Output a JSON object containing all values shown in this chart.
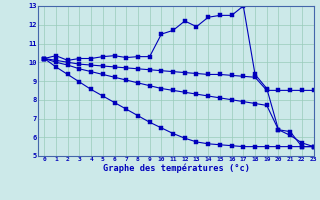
{
  "title": "Graphe des températures (°c)",
  "bg_color": "#cce9e9",
  "line_color": "#0000bb",
  "grid_color": "#99ccbb",
  "xlim": [
    -0.5,
    23
  ],
  "ylim": [
    5,
    13
  ],
  "xticks": [
    0,
    1,
    2,
    3,
    4,
    5,
    6,
    7,
    8,
    9,
    10,
    11,
    12,
    13,
    14,
    15,
    16,
    17,
    18,
    19,
    20,
    21,
    22,
    23
  ],
  "yticks": [
    5,
    6,
    7,
    8,
    9,
    10,
    11,
    12,
    13
  ],
  "s1_x": [
    0,
    1,
    2,
    3,
    4,
    5,
    6,
    7,
    8,
    9,
    10,
    11,
    12,
    13,
    14,
    15,
    16,
    17,
    18,
    19,
    20,
    21,
    22,
    23
  ],
  "s1_y": [
    10.2,
    10.35,
    10.1,
    10.2,
    10.2,
    10.3,
    10.35,
    10.25,
    10.3,
    10.3,
    11.5,
    11.7,
    12.2,
    11.9,
    12.4,
    12.5,
    12.5,
    13.0,
    9.35,
    8.6,
    6.4,
    6.3,
    5.5,
    5.5
  ],
  "s2_x": [
    0,
    1,
    2,
    3,
    4,
    5,
    6,
    7,
    8,
    9,
    10,
    11,
    12,
    13,
    14,
    15,
    16,
    17,
    18,
    19,
    20,
    21,
    22,
    23
  ],
  "s2_y": [
    10.2,
    10.1,
    10.0,
    9.9,
    9.85,
    9.8,
    9.75,
    9.7,
    9.65,
    9.6,
    9.55,
    9.5,
    9.45,
    9.4,
    9.35,
    9.35,
    9.3,
    9.25,
    9.2,
    8.5,
    8.5,
    8.5,
    8.5,
    8.5
  ],
  "s3_x": [
    0,
    1,
    2,
    3,
    4,
    5,
    6,
    7,
    8,
    9,
    10,
    11,
    12,
    13,
    14,
    15,
    16,
    17,
    18,
    19,
    20,
    21,
    22,
    23
  ],
  "s3_y": [
    10.2,
    10.0,
    9.85,
    9.65,
    9.5,
    9.35,
    9.2,
    9.05,
    8.9,
    8.75,
    8.6,
    8.5,
    8.4,
    8.3,
    8.2,
    8.1,
    8.0,
    7.9,
    7.8,
    7.7,
    6.4,
    6.1,
    5.7,
    5.5
  ],
  "s4_x": [
    0,
    1,
    2,
    3,
    4,
    5,
    6,
    7,
    8,
    9,
    10,
    11,
    12,
    13,
    14,
    15,
    16,
    17,
    18,
    19,
    20,
    21,
    22,
    23
  ],
  "s4_y": [
    10.2,
    9.75,
    9.35,
    8.95,
    8.55,
    8.2,
    7.85,
    7.5,
    7.15,
    6.8,
    6.5,
    6.2,
    5.95,
    5.75,
    5.65,
    5.6,
    5.55,
    5.5,
    5.5,
    5.5,
    5.5,
    5.5,
    5.5,
    5.5
  ]
}
